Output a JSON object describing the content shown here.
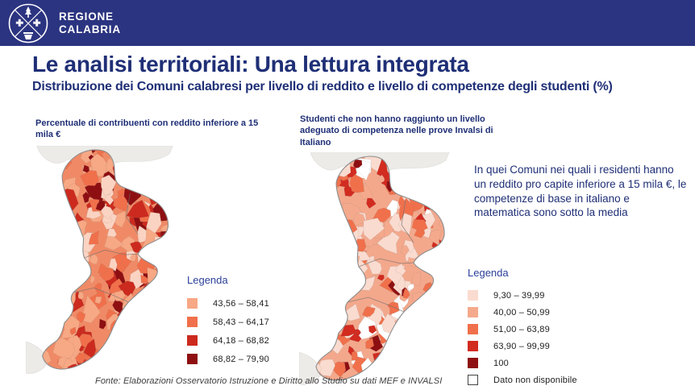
{
  "header": {
    "brand_line1": "REGIONE",
    "brand_line2": "CALABRIA"
  },
  "title": "Le analisi territoriali: Una lettura integrata",
  "subtitle": "Distribuzione dei Comuni calabresi per livello di reddito e livello di competenze degli studenti (%)",
  "maps": {
    "left": {
      "label": "Percentuale di contribuenti con reddito inferiore a 15 mila €",
      "legend_title": "Legenda",
      "legend": [
        {
          "color": "#f7a884",
          "label": "43,56 – 58,41"
        },
        {
          "color": "#f0704b",
          "label": "58,43 – 64,17"
        },
        {
          "color": "#cc2a1e",
          "label": "64,18 – 68,82"
        },
        {
          "color": "#8e0f12",
          "label": "68,82 – 79,90"
        }
      ]
    },
    "right": {
      "label": "Studenti che non hanno raggiunto un livello adeguato di competenza nelle prove Invalsi di Italiano",
      "legend_title": "Legenda",
      "legend": [
        {
          "color": "#fadbcf",
          "label": "9,30 – 39,99"
        },
        {
          "color": "#f5a98c",
          "label": "40,00 – 50,99"
        },
        {
          "color": "#f0704b",
          "label": "51,00 – 63,89"
        },
        {
          "color": "#d22b20",
          "label": "63,90 – 99,99"
        },
        {
          "color": "#8e0f12",
          "label": "100"
        },
        {
          "color": "#ffffff",
          "label": "Dato non disponibile",
          "border": true
        }
      ]
    }
  },
  "callout": "In quei Comuni nei quali i residenti hanno un reddito pro capite inferiore a 15 mila €, le competenze di base in italiano e matematica  sono sotto la media",
  "footer": "Fonte: Elaborazioni Osservatorio  Istruzione e Diritto allo Studio su dati MEF e INVALSI",
  "colors": {
    "header_bg": "#2b3480",
    "heading_text": "#1f2f76",
    "neighbor_gray": "#ecebe8",
    "map_outline": "#8d8d8d"
  }
}
